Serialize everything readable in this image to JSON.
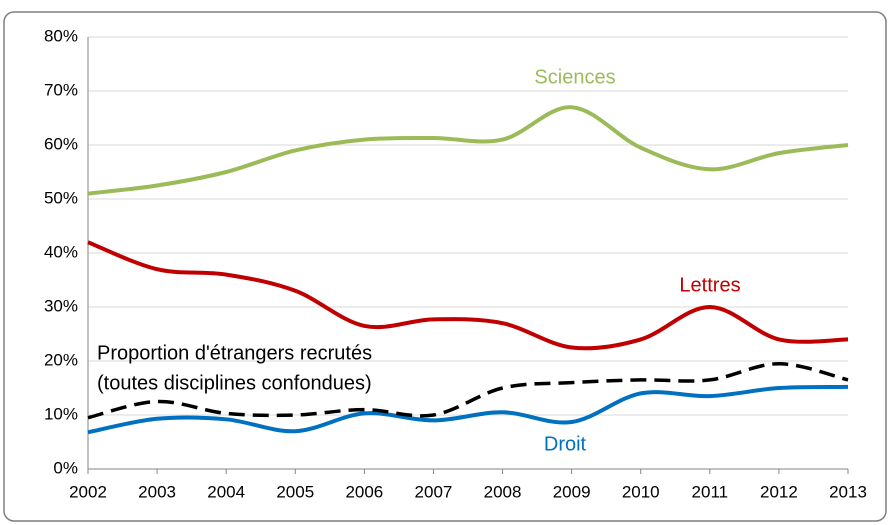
{
  "chart_data": {
    "type": "line",
    "categories": [
      "2002",
      "2003",
      "2004",
      "2005",
      "2006",
      "2007",
      "2008",
      "2009",
      "2010",
      "2011",
      "2012",
      "2013"
    ],
    "series": [
      {
        "name": "Sciences",
        "color": "#9bbb59",
        "values": [
          51,
          52.5,
          55,
          59,
          61,
          61.3,
          61,
          67,
          59.5,
          55.5,
          58.5,
          60
        ]
      },
      {
        "name": "Lettres",
        "color": "#c00000",
        "values": [
          42,
          37,
          36,
          33,
          26.5,
          27.7,
          27,
          22.5,
          24,
          30,
          24,
          24
        ]
      },
      {
        "name": "Droit",
        "color": "#0070c0",
        "values": [
          6.8,
          9.3,
          9.2,
          7,
          10.3,
          9,
          10.5,
          8.7,
          14,
          13.5,
          15,
          15.2
        ]
      },
      {
        "name": [
          "Proportion d'étrangers recrutés",
          "(toutes disciplines confondues)"
        ],
        "color": "#000000",
        "dashed": true,
        "values": [
          9.5,
          12.5,
          10.3,
          10,
          11,
          10,
          15,
          16,
          16.5,
          16.5,
          19.5,
          16.5
        ]
      }
    ],
    "ylim": [
      0,
      80
    ],
    "yticks": [
      {
        "value": 0,
        "label": "0%"
      },
      {
        "value": 10,
        "label": "10%"
      },
      {
        "value": 20,
        "label": "20%"
      },
      {
        "value": 30,
        "label": "30%"
      },
      {
        "value": 40,
        "label": "40%"
      },
      {
        "value": 50,
        "label": "50%"
      },
      {
        "value": 60,
        "label": "60%"
      },
      {
        "value": 70,
        "label": "70%"
      },
      {
        "value": 80,
        "label": "80%"
      }
    ],
    "grid": true
  }
}
